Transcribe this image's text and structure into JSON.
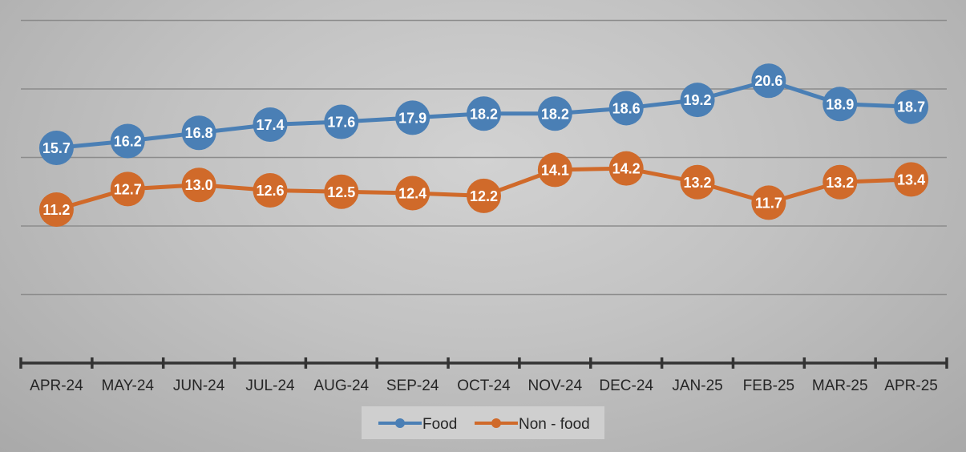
{
  "chart_data": {
    "type": "line",
    "title": "",
    "xlabel": "",
    "ylabel": "",
    "categories": [
      "APR-24",
      "MAY-24",
      "JUN-24",
      "JUL-24",
      "AUG-24",
      "SEP-24",
      "OCT-24",
      "NOV-24",
      "DEC-24",
      "JAN-25",
      "FEB-25",
      "MAR-25",
      "APR-25"
    ],
    "series": [
      {
        "name": "Food",
        "color": "#4a7fb5",
        "values": [
          15.7,
          16.2,
          16.8,
          17.4,
          17.6,
          17.9,
          18.2,
          18.2,
          18.6,
          19.2,
          20.6,
          18.9,
          18.7
        ],
        "labels": [
          "15.7",
          "16.2",
          "16.8",
          "17.4",
          "17.6",
          "17.9",
          "18.2",
          "18.2",
          "18.6",
          "19.2",
          "20.6",
          "18.9",
          "18.7"
        ]
      },
      {
        "name": "Non - food",
        "color": "#d06a2a",
        "values": [
          11.2,
          12.7,
          13.0,
          12.6,
          12.5,
          12.4,
          12.2,
          14.1,
          14.2,
          13.2,
          11.7,
          13.2,
          13.4
        ],
        "labels": [
          "11.2",
          "12.7",
          "13.0",
          "12.6",
          "12.5",
          "12.4",
          "12.2",
          "14.1",
          "14.2",
          "13.2",
          "11.7",
          "13.2",
          "13.4"
        ]
      }
    ],
    "ylim": [
      0,
      25
    ],
    "gridlines": [
      5,
      10,
      15,
      20,
      25
    ],
    "grid": true,
    "legend_position": "bottom",
    "data_labels": true,
    "markers": "circle"
  }
}
